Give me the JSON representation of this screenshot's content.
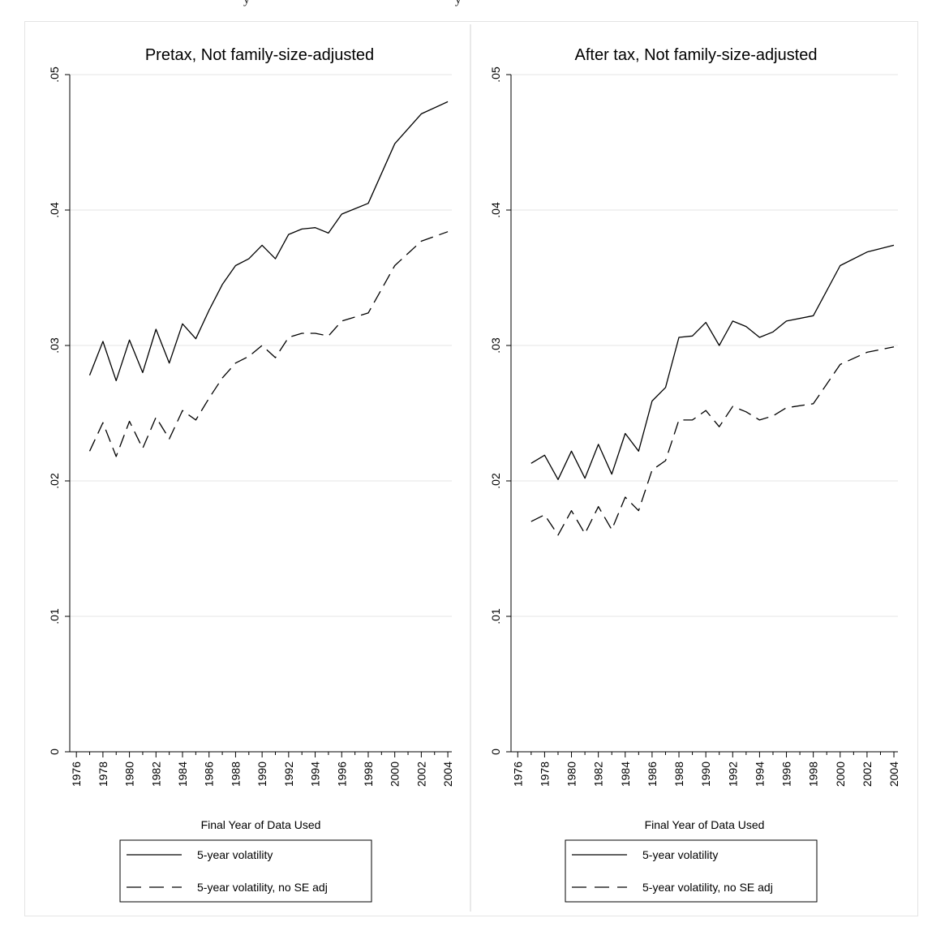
{
  "header_fragment": "y · · · · · · · · · · · · · · · · · · · · · · · · y",
  "chart_data": [
    {
      "type": "line",
      "title": "Pretax, Not family-size-adjusted",
      "xlabel": "Final Year of Data Used",
      "ylabel": "",
      "xlim": [
        1975.5,
        2004.3
      ],
      "ylim": [
        0,
        0.05
      ],
      "xticks": [
        "1976",
        "1978",
        "1980",
        "1982",
        "1984",
        "1986",
        "1988",
        "1990",
        "1992",
        "1994",
        "1996",
        "1998",
        "2000",
        "2002",
        "2004"
      ],
      "yticks": [
        "0",
        ".01",
        ".02",
        ".03",
        ".04",
        ".05"
      ],
      "grid": true,
      "legend_position": "bottom",
      "x": [
        1977,
        1978,
        1979,
        1980,
        1981,
        1982,
        1983,
        1984,
        1985,
        1986,
        1987,
        1988,
        1989,
        1990,
        1991,
        1992,
        1993,
        1994,
        1995,
        1996,
        1998,
        2000,
        2002,
        2004
      ],
      "series": [
        {
          "name": "5-year volatility",
          "style": "solid",
          "values": [
            0.0278,
            0.0303,
            0.0274,
            0.0304,
            0.028,
            0.0312,
            0.0287,
            0.0316,
            0.0305,
            0.0326,
            0.0345,
            0.0359,
            0.0364,
            0.0374,
            0.0364,
            0.0382,
            0.0386,
            0.0387,
            0.0383,
            0.0397,
            0.0405,
            0.0449,
            0.0471,
            0.048
          ]
        },
        {
          "name": "5-year volatility, no SE adj",
          "style": "dashed",
          "values": [
            0.0222,
            0.0243,
            0.0218,
            0.0244,
            0.0224,
            0.0247,
            0.0231,
            0.0252,
            0.0245,
            0.0261,
            0.0276,
            0.0287,
            0.0292,
            0.03,
            0.0291,
            0.0306,
            0.0309,
            0.0309,
            0.0307,
            0.0318,
            0.0324,
            0.0359,
            0.0377,
            0.0384
          ]
        }
      ]
    },
    {
      "type": "line",
      "title": "After tax, Not family-size-adjusted",
      "xlabel": "Final Year of Data Used",
      "ylabel": "",
      "xlim": [
        1975.5,
        2004.3
      ],
      "ylim": [
        0,
        0.05
      ],
      "xticks": [
        "1976",
        "1978",
        "1980",
        "1982",
        "1984",
        "1986",
        "1988",
        "1990",
        "1992",
        "1994",
        "1996",
        "1998",
        "2000",
        "2002",
        "2004"
      ],
      "yticks": [
        "0",
        ".01",
        ".02",
        ".03",
        ".04",
        ".05"
      ],
      "grid": true,
      "legend_position": "bottom",
      "x": [
        1977,
        1978,
        1979,
        1980,
        1981,
        1982,
        1983,
        1984,
        1985,
        1986,
        1987,
        1988,
        1989,
        1990,
        1991,
        1992,
        1993,
        1994,
        1995,
        1996,
        1998,
        2000,
        2002,
        2004
      ],
      "series": [
        {
          "name": "5-year volatility",
          "style": "solid",
          "values": [
            0.0213,
            0.0219,
            0.0201,
            0.0222,
            0.0202,
            0.0227,
            0.0205,
            0.0235,
            0.0222,
            0.0259,
            0.0269,
            0.0306,
            0.0307,
            0.0317,
            0.03,
            0.0318,
            0.0314,
            0.0306,
            0.031,
            0.0318,
            0.0322,
            0.0359,
            0.0369,
            0.0374
          ]
        },
        {
          "name": "5-year volatility, no SE adj",
          "style": "dashed",
          "values": [
            0.017,
            0.0175,
            0.016,
            0.0178,
            0.0161,
            0.0181,
            0.0164,
            0.0188,
            0.0178,
            0.0208,
            0.0215,
            0.0245,
            0.0245,
            0.0252,
            0.024,
            0.0255,
            0.0251,
            0.0245,
            0.0248,
            0.0254,
            0.0257,
            0.0286,
            0.0295,
            0.0299
          ]
        }
      ]
    }
  ]
}
